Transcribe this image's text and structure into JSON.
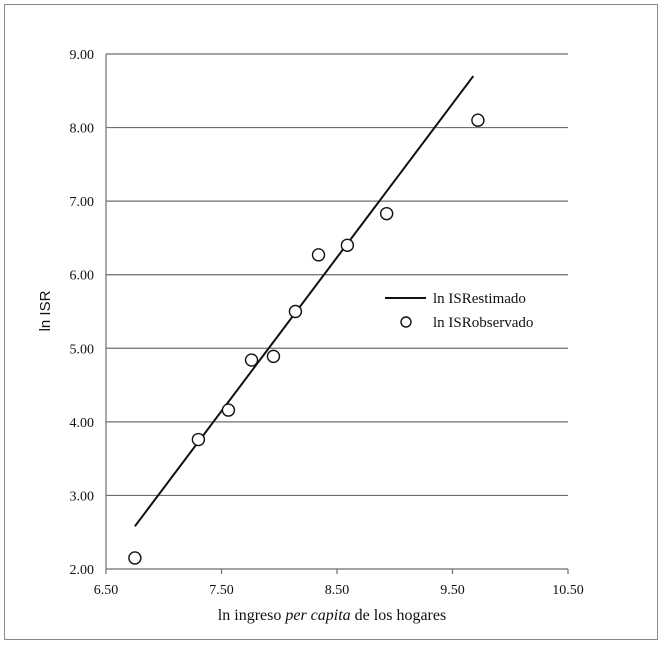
{
  "chart_data": {
    "type": "scatter",
    "xlabel_parts": [
      "ln ingreso ",
      "per capita",
      " de los hogares"
    ],
    "ylabel": "ln ISR",
    "xlim": [
      6.5,
      10.5
    ],
    "ylim": [
      2.0,
      9.0
    ],
    "x_ticks": [
      "6.50",
      "7.50",
      "8.50",
      "9.50",
      "10.50"
    ],
    "y_ticks": [
      "2.00",
      "3.00",
      "4.00",
      "5.00",
      "6.00",
      "7.00",
      "8.00",
      "9.00"
    ],
    "grid": "horizontal",
    "legend_position": "right",
    "series": [
      {
        "name": "ln ISRestimado",
        "kind": "line",
        "x": [
          6.75,
          9.68
        ],
        "y": [
          2.58,
          8.7
        ]
      },
      {
        "name": "ln ISRobservado",
        "kind": "scatter",
        "x": [
          6.75,
          7.3,
          7.56,
          7.76,
          7.95,
          8.14,
          8.34,
          8.59,
          8.93,
          9.72
        ],
        "y": [
          2.15,
          3.76,
          4.16,
          4.84,
          4.89,
          5.5,
          6.27,
          6.4,
          6.83,
          8.1
        ]
      }
    ]
  }
}
